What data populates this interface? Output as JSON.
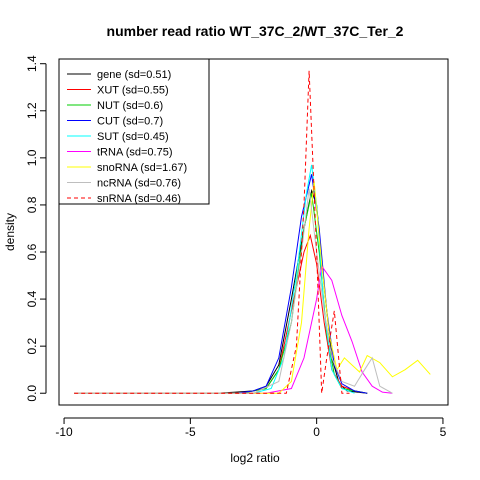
{
  "chart_data": {
    "type": "line",
    "title": "number read ratio WT_37C_2/WT_37C_Ter_2",
    "xlabel": "log2 ratio",
    "ylabel": "density",
    "xlim": [
      -10.2,
      5.2
    ],
    "ylim": [
      -0.05,
      1.42
    ],
    "xticks": [
      -10,
      -5,
      0,
      5
    ],
    "yticks": [
      0.0,
      0.2,
      0.4,
      0.6,
      0.8,
      1.0,
      1.2,
      1.4
    ],
    "grid": false,
    "legend_position": "top-left",
    "series": [
      {
        "name": "gene (sd=0.51)",
        "color": "#000000",
        "dash": "solid",
        "x": [
          -9.6,
          -4.0,
          -3.2,
          -2.5,
          -2.0,
          -1.5,
          -1.0,
          -0.5,
          -0.2,
          0.0,
          0.3,
          0.6,
          0.9,
          1.2,
          1.6,
          2.0
        ],
        "y": [
          0.0,
          0.0,
          0.005,
          0.01,
          0.03,
          0.12,
          0.4,
          0.7,
          0.86,
          0.8,
          0.45,
          0.15,
          0.04,
          0.01,
          0.005,
          0.0
        ]
      },
      {
        "name": "XUT (sd=0.55)",
        "color": "#ff0000",
        "dash": "solid",
        "x": [
          -9.6,
          -3.0,
          -2.0,
          -1.5,
          -1.0,
          -0.5,
          -0.25,
          0.0,
          0.3,
          0.6,
          1.0,
          1.5,
          2.0
        ],
        "y": [
          0.0,
          0.0,
          0.02,
          0.1,
          0.35,
          0.6,
          0.67,
          0.55,
          0.3,
          0.1,
          0.03,
          0.01,
          0.0
        ]
      },
      {
        "name": "NUT (sd=0.6)",
        "color": "#00cd00",
        "dash": "solid",
        "x": [
          -9.6,
          -3.0,
          -2.0,
          -1.5,
          -1.0,
          -0.5,
          -0.2,
          0.1,
          0.4,
          0.7,
          1.0,
          1.5,
          2.0
        ],
        "y": [
          0.0,
          0.0,
          0.02,
          0.1,
          0.3,
          0.7,
          0.85,
          0.6,
          0.25,
          0.08,
          0.02,
          0.01,
          0.0
        ]
      },
      {
        "name": "CUT (sd=0.7)",
        "color": "#0000ff",
        "dash": "solid",
        "x": [
          -9.6,
          -3.2,
          -2.5,
          -2.0,
          -1.5,
          -1.0,
          -0.6,
          -0.2,
          0.1,
          0.4,
          0.7,
          1.0,
          1.5,
          2.0
        ],
        "y": [
          0.0,
          0.0,
          0.01,
          0.03,
          0.15,
          0.45,
          0.75,
          0.93,
          0.7,
          0.35,
          0.12,
          0.04,
          0.01,
          0.0
        ]
      },
      {
        "name": "SUT (sd=0.45)",
        "color": "#00ffff",
        "dash": "solid",
        "x": [
          -9.6,
          -2.5,
          -1.8,
          -1.3,
          -0.8,
          -0.4,
          -0.2,
          0.0,
          0.3,
          0.6,
          1.0,
          1.5
        ],
        "y": [
          0.0,
          0.0,
          0.02,
          0.15,
          0.5,
          0.85,
          0.97,
          0.8,
          0.35,
          0.1,
          0.02,
          0.0
        ]
      },
      {
        "name": "tRNA (sd=0.75)",
        "color": "#ff00ff",
        "dash": "solid",
        "x": [
          -9.6,
          -2.0,
          -1.0,
          -0.5,
          0.0,
          0.2,
          0.6,
          1.0,
          1.4,
          1.8,
          2.2,
          2.6,
          3.0
        ],
        "y": [
          0.0,
          0.0,
          0.02,
          0.15,
          0.4,
          0.54,
          0.48,
          0.33,
          0.22,
          0.09,
          0.03,
          0.005,
          0.0
        ]
      },
      {
        "name": "snoRNA (sd=1.67)",
        "color": "#ffff00",
        "dash": "solid",
        "x": [
          -9.6,
          -1.5,
          -1.0,
          -0.6,
          -0.3,
          -0.1,
          0.2,
          0.5,
          0.8,
          1.1,
          1.4,
          1.7,
          2.0,
          2.5,
          3.0,
          3.5,
          4.0,
          4.5
        ],
        "y": [
          0.0,
          0.0,
          0.05,
          0.3,
          0.7,
          0.9,
          0.55,
          0.25,
          0.1,
          0.15,
          0.12,
          0.09,
          0.16,
          0.13,
          0.07,
          0.1,
          0.14,
          0.08
        ]
      },
      {
        "name": "ncRNA (sd=0.76)",
        "color": "#bebebe",
        "dash": "solid",
        "x": [
          -9.6,
          -2.5,
          -1.5,
          -1.0,
          -0.6,
          -0.3,
          0.0,
          0.3,
          0.6,
          1.0,
          1.5,
          1.9,
          2.2,
          2.5,
          3.0
        ],
        "y": [
          0.0,
          0.0,
          0.05,
          0.3,
          0.6,
          0.87,
          0.6,
          0.35,
          0.15,
          0.05,
          0.03,
          0.1,
          0.15,
          0.03,
          0.0
        ]
      },
      {
        "name": "snRNA (sd=0.46)",
        "color": "#ff0000",
        "dash": "dashed",
        "x": [
          -9.6,
          -1.2,
          -0.8,
          -0.5,
          -0.3,
          0.0,
          0.2,
          0.4,
          0.7,
          1.0,
          1.3
        ],
        "y": [
          0.0,
          0.0,
          0.2,
          0.8,
          1.37,
          0.6,
          0.0,
          0.15,
          0.35,
          0.0,
          0.0
        ]
      }
    ]
  }
}
